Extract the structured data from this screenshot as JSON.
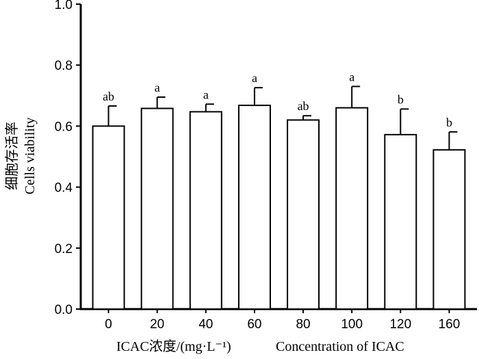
{
  "chart_data": {
    "type": "bar",
    "categories": [
      "0",
      "20",
      "40",
      "60",
      "80",
      "100",
      "120",
      "160"
    ],
    "values": [
      0.6,
      0.658,
      0.647,
      0.668,
      0.62,
      0.66,
      0.572,
      0.522
    ],
    "errors": [
      0.066,
      0.037,
      0.025,
      0.058,
      0.014,
      0.07,
      0.084,
      0.059
    ],
    "significance": [
      "ab",
      "a",
      "a",
      "a",
      "ab",
      "a",
      "b",
      "b"
    ],
    "yticks": [
      "0.0",
      "0.2",
      "0.4",
      "0.6",
      "0.8",
      "1.0"
    ],
    "ylim": [
      0,
      1.0
    ],
    "ylabel_cn": "细胞存活率",
    "ylabel_en": "Cells viability",
    "xlabel_cn": "ICAC浓度/(mg·L⁻¹)",
    "xlabel_en": "Concentration of ICAC",
    "bar_fill": "#ffffff",
    "line_color": "#000000",
    "grid": false,
    "legend": false
  }
}
